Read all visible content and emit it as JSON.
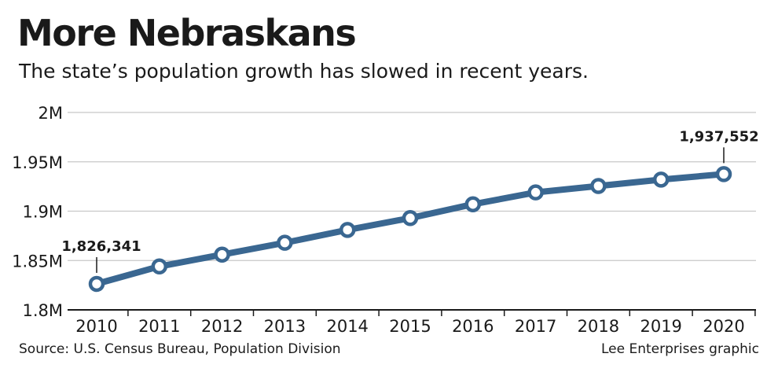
{
  "chart_data": {
    "type": "line",
    "title": "More Nebraskans",
    "subtitle": "The state’s population growth has slowed in recent years.",
    "x": [
      "2010",
      "2011",
      "2012",
      "2013",
      "2014",
      "2015",
      "2016",
      "2017",
      "2018",
      "2019",
      "2020"
    ],
    "y_tick_values": [
      1800000,
      1850000,
      1900000,
      1950000,
      2000000
    ],
    "y_tick_labels": [
      "1.8M",
      "1.85M",
      "1.9M",
      "1.95M",
      "2M"
    ],
    "ylim": [
      1800000,
      2000000
    ],
    "grid": true,
    "series": [
      {
        "values": [
          1826341,
          1844000,
          1856000,
          1868000,
          1881000,
          1893000,
          1907000,
          1919000,
          1925500,
          1932000,
          1937552
        ],
        "color": "#3a6791"
      }
    ],
    "annotations": [
      {
        "index": 0,
        "text": "1,826,341"
      },
      {
        "index": 10,
        "text": "1,937,552"
      }
    ],
    "source": "Source: U.S. Census Bureau, Population Division",
    "credit": "Lee Enterprises graphic"
  }
}
